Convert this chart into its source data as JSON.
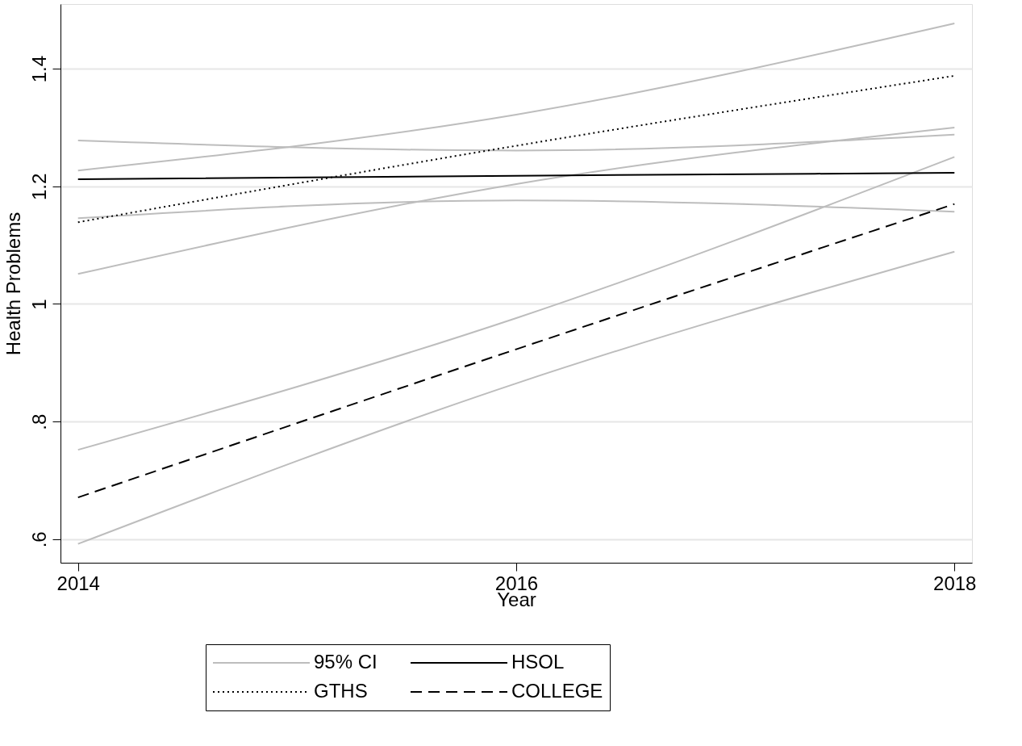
{
  "chart_data": {
    "type": "line",
    "xlabel": "Year",
    "ylabel": "Health Problems",
    "x": [
      2014,
      2016,
      2018
    ],
    "series": [
      {
        "name": "95% CI",
        "color": "#bdbdbd",
        "line_style": "solid",
        "values": [
          1.278,
          1.261,
          1.288
        ]
      },
      {
        "color": "#bdbdbd",
        "line_style": "solid",
        "values": [
          1.146,
          1.176,
          1.157
        ]
      },
      {
        "color": "#bdbdbd",
        "line_style": "solid",
        "values": [
          1.227,
          1.322,
          1.477
        ]
      },
      {
        "color": "#bdbdbd",
        "line_style": "solid",
        "values": [
          1.051,
          1.204,
          1.3
        ]
      },
      {
        "color": "#bdbdbd",
        "line_style": "solid",
        "values": [
          0.752,
          0.976,
          1.25
        ]
      },
      {
        "color": "#bdbdbd",
        "line_style": "solid",
        "values": [
          0.592,
          0.865,
          1.089
        ]
      },
      {
        "name": "HSOL",
        "color": "#000000",
        "line_style": "solid",
        "values": [
          1.212,
          1.218,
          1.223
        ]
      },
      {
        "name": "GTHS",
        "color": "#000000",
        "line_style": "dotted",
        "values": [
          1.139,
          1.269,
          1.388
        ]
      },
      {
        "name": "COLLEGE",
        "color": "#000000",
        "line_style": "dashed",
        "values": [
          0.671,
          0.923,
          1.17
        ]
      }
    ],
    "xlim": [
      2013.92,
      2018.08
    ],
    "xticks": [
      2014,
      2016,
      2018
    ],
    "ylim": [
      0.56,
      1.51
    ],
    "yticks": [
      {
        "value": 0.6,
        "label": ".6"
      },
      {
        "value": 0.8,
        "label": ".8"
      },
      {
        "value": 1,
        "label": "1"
      },
      {
        "value": 1.2,
        "label": "1.2"
      },
      {
        "value": 1.4,
        "label": "1.4"
      }
    ],
    "grid": "y",
    "legend": "bottom",
    "marker": "none"
  }
}
